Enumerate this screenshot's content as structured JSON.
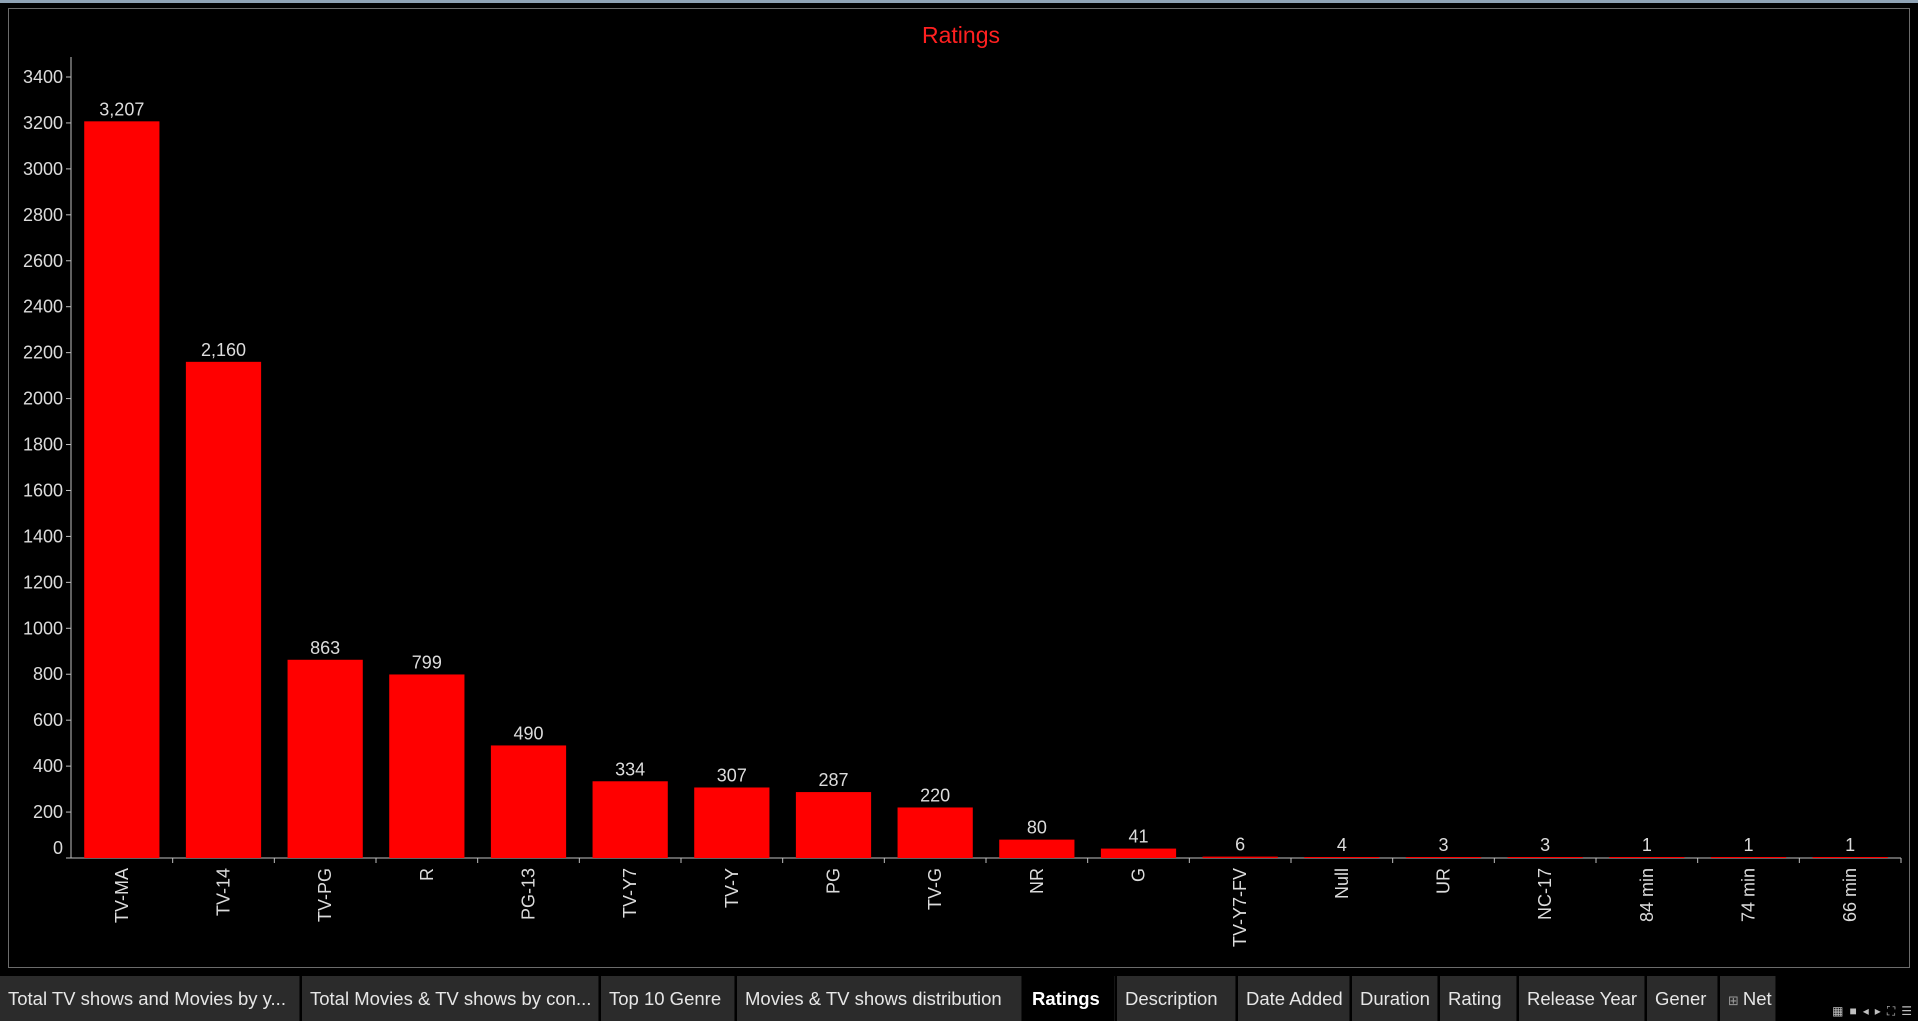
{
  "chart_data": {
    "type": "bar",
    "title": "Ratings",
    "xlabel": "",
    "ylabel": "",
    "categories": [
      "TV-MA",
      "TV-14",
      "TV-PG",
      "R",
      "PG-13",
      "TV-Y7",
      "TV-Y",
      "PG",
      "TV-G",
      "NR",
      "G",
      "TV-Y7-FV",
      "Null",
      "UR",
      "NC-17",
      "84 min",
      "74 min",
      "66 min"
    ],
    "values": [
      3207,
      2160,
      863,
      799,
      490,
      334,
      307,
      287,
      220,
      80,
      41,
      6,
      4,
      3,
      3,
      1,
      1,
      1
    ],
    "value_labels": [
      "3,207",
      "2,160",
      "863",
      "799",
      "490",
      "334",
      "307",
      "287",
      "220",
      "80",
      "41",
      "6",
      "4",
      "3",
      "3",
      "1",
      "1",
      "1"
    ],
    "ylim": [
      0,
      3400
    ],
    "yticks": [
      0,
      200,
      400,
      600,
      800,
      1000,
      1200,
      1400,
      1600,
      1800,
      2000,
      2200,
      2400,
      2600,
      2800,
      3000,
      3200,
      3400
    ],
    "grid": false,
    "legend": "none",
    "colors": {
      "bar": "#ff0000",
      "title": "#ff2020",
      "axis": "#bfbfbf",
      "text": "#dcdcdc",
      "background": "#000000"
    }
  },
  "tabs": [
    {
      "label": "Total TV shows and Movies by y...",
      "active": false
    },
    {
      "label": "Total Movies & TV shows by con...",
      "active": false
    },
    {
      "label": "Top 10 Genre",
      "active": false
    },
    {
      "label": "Movies & TV shows distribution",
      "active": false
    },
    {
      "label": "Ratings",
      "active": true
    },
    {
      "label": "Description",
      "active": false
    },
    {
      "label": "Date Added",
      "active": false
    },
    {
      "label": "Duration",
      "active": false
    },
    {
      "label": "Rating",
      "active": false
    },
    {
      "label": "Release Year",
      "active": false
    },
    {
      "label": "Gener",
      "active": false
    },
    {
      "label": "Net",
      "active": false,
      "icon": "grid-sheet-icon"
    }
  ],
  "controls": [
    {
      "icon": "show-filmstrip-icon",
      "glyph": "▦"
    },
    {
      "icon": "show-tabs-icon",
      "glyph": "■"
    },
    {
      "icon": "previous-sheet-icon",
      "glyph": "◂"
    },
    {
      "icon": "next-sheet-icon",
      "glyph": "▸"
    },
    {
      "icon": "fit-screen-icon",
      "glyph": "⛶"
    },
    {
      "icon": "tab-menu-icon",
      "glyph": "☰"
    }
  ]
}
